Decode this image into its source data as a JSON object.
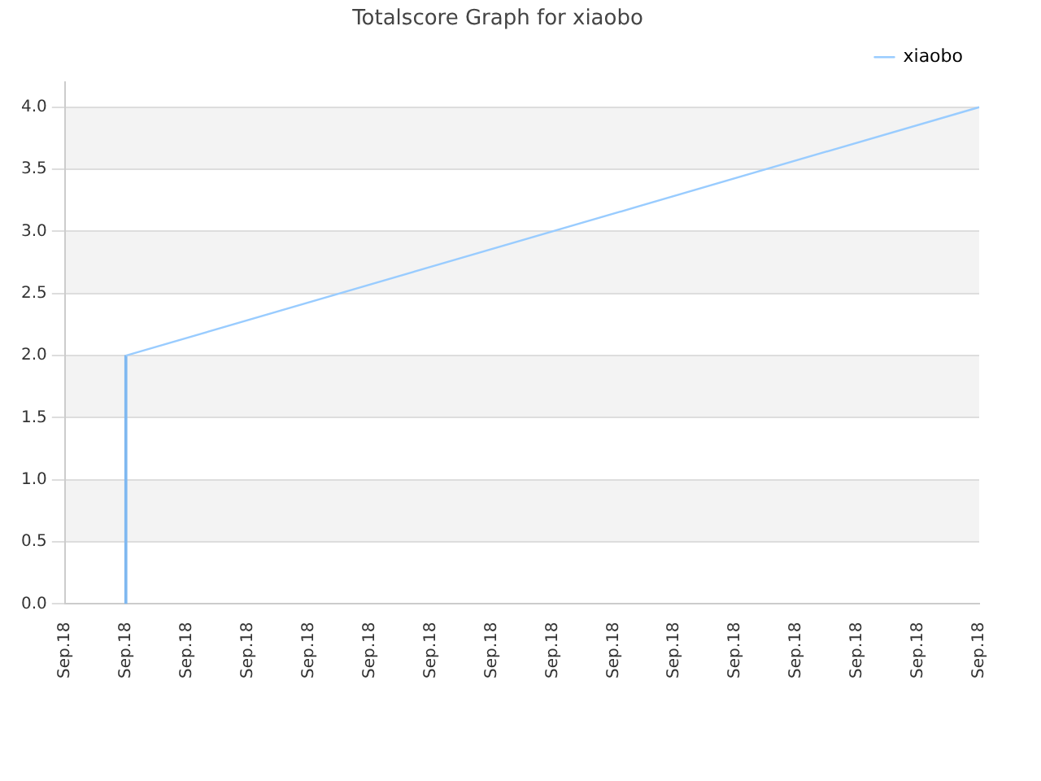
{
  "chart_data": {
    "type": "line",
    "title": "Totalscore Graph for xiaobo",
    "categories": [
      "Sep.18",
      "Sep.18",
      "Sep.18",
      "Sep.18",
      "Sep.18",
      "Sep.18",
      "Sep.18",
      "Sep.18",
      "Sep.18",
      "Sep.18",
      "Sep.18",
      "Sep.18",
      "Sep.18",
      "Sep.18",
      "Sep.18",
      "Sep.18"
    ],
    "series": [
      {
        "name": "xiaobo",
        "color": "#99ccff",
        "values": [
          null,
          2,
          null,
          null,
          null,
          null,
          null,
          null,
          null,
          null,
          null,
          null,
          null,
          null,
          null,
          4
        ]
      },
      {
        "type": "bar",
        "color": "#7fb8f0",
        "values": [
          null,
          2,
          null,
          null,
          null,
          null,
          null,
          null,
          null,
          null,
          null,
          null,
          null,
          null,
          null,
          null
        ]
      }
    ],
    "ylim": [
      0,
      4.2
    ],
    "yticks": [
      {
        "value": 0,
        "label": "0.0"
      },
      {
        "value": 0.5,
        "label": "0.5"
      },
      {
        "value": 1,
        "label": "1.0"
      },
      {
        "value": 1.5,
        "label": "1.5"
      },
      {
        "value": 2,
        "label": "2.0"
      },
      {
        "value": 2.5,
        "label": "2.5"
      },
      {
        "value": 3,
        "label": "3.0"
      },
      {
        "value": 3.5,
        "label": "3.5"
      },
      {
        "value": 4,
        "label": "4.0"
      }
    ],
    "grid": "y",
    "legend": "top right",
    "marker": "none",
    "line_style": "solid"
  }
}
